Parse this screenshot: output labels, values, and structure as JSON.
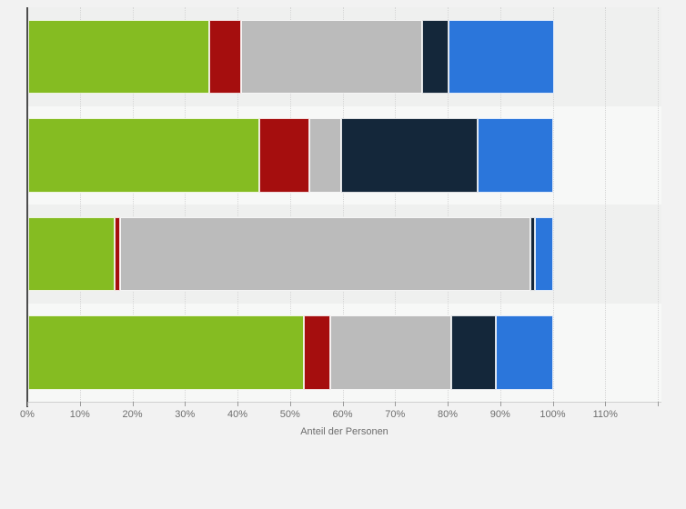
{
  "chart_data": {
    "type": "bar",
    "orientation": "horizontal",
    "stacked": true,
    "title": "",
    "xlabel": "Anteil der Personen",
    "ylabel": "",
    "legend": "none",
    "grid": true,
    "xlim": [
      0,
      120.7
    ],
    "categories": [
      "",
      "",
      "",
      ""
    ],
    "series": [
      {
        "name": "segment-green",
        "color": "#85BC22",
        "values": [
          34.5,
          44.0,
          16.5,
          52.5
        ]
      },
      {
        "name": "segment-dark-red",
        "color": "#A50E0E",
        "values": [
          6.0,
          9.5,
          1.0,
          5.0
        ]
      },
      {
        "name": "segment-silver",
        "color": "#BBBBBB",
        "values": [
          34.5,
          6.0,
          78.0,
          23.0
        ]
      },
      {
        "name": "segment-dark-navy",
        "color": "#14273A",
        "values": [
          5.0,
          26.0,
          1.0,
          8.5
        ]
      },
      {
        "name": "segment-blue",
        "color": "#2B76DB",
        "values": [
          20.0,
          14.5,
          3.5,
          11.0
        ]
      }
    ],
    "x_ticks": [
      {
        "value": 0,
        "label": "0%"
      },
      {
        "value": 10,
        "label": "10%"
      },
      {
        "value": 20,
        "label": "20%"
      },
      {
        "value": 30,
        "label": "30%"
      },
      {
        "value": 40,
        "label": "40%"
      },
      {
        "value": 50,
        "label": "50%"
      },
      {
        "value": 60,
        "label": "60%"
      },
      {
        "value": 70,
        "label": "70%"
      },
      {
        "value": 80,
        "label": "80%"
      },
      {
        "value": 90,
        "label": "90%"
      },
      {
        "value": 100,
        "label": "100%"
      },
      {
        "value": 110,
        "label": "110%"
      }
    ],
    "gridline_values": [
      10,
      20,
      30,
      40,
      50,
      60,
      70,
      80,
      90,
      100,
      110,
      120
    ]
  },
  "colors": {
    "page_background": "#F2F2F2",
    "band_odd": "#EFF0EF",
    "band_even": "#F7F8F7",
    "gridline": "#D6D6D6",
    "y_axis_line": "#4D4D4D",
    "tick": "#9A9A9A",
    "label_text": "#6E6E6E"
  }
}
